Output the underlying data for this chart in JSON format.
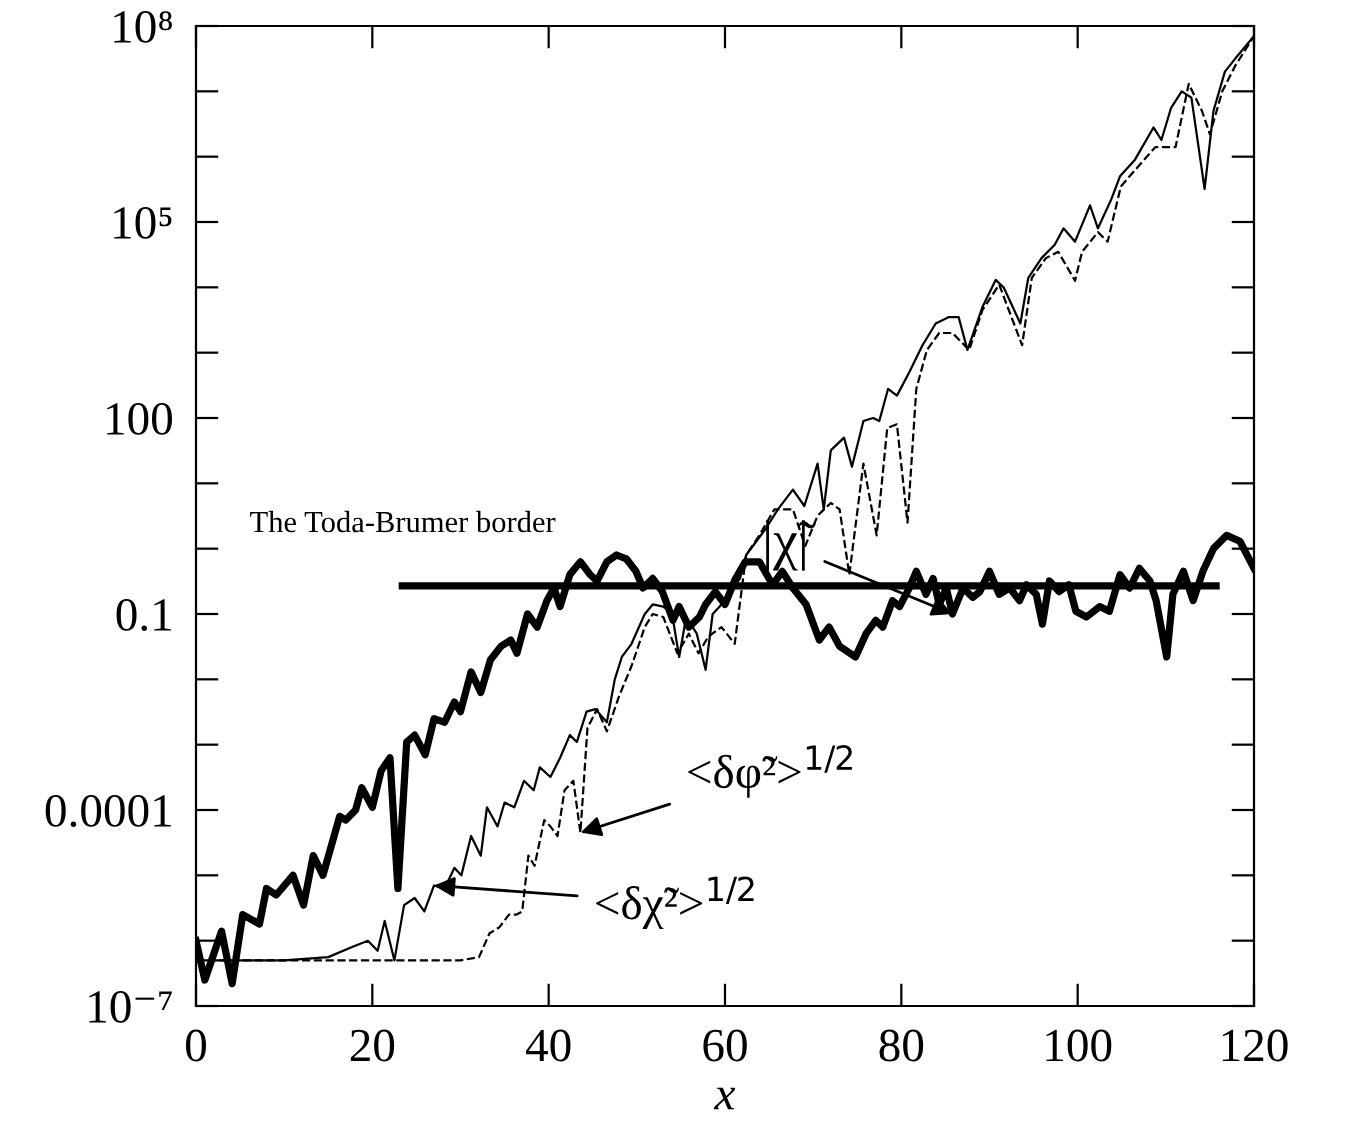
{
  "chart_data": {
    "type": "line",
    "xlabel": "x",
    "log": "y",
    "xlim": [
      0,
      120
    ],
    "xticks": [
      0,
      20,
      40,
      60,
      80,
      100,
      120
    ],
    "ylim": [
      1e-07,
      100000000.0
    ],
    "yticks": [
      {
        "value": 1e-07,
        "label": "10⁻⁷"
      },
      {
        "value": 1e-06,
        "label": null
      },
      {
        "value": 1e-05,
        "label": null
      },
      {
        "value": 0.0001,
        "label": "0.0001"
      },
      {
        "value": 0.001,
        "label": null
      },
      {
        "value": 0.01,
        "label": null
      },
      {
        "value": 0.1,
        "label": "0.1"
      },
      {
        "value": 1,
        "label": null
      },
      {
        "value": 10,
        "label": null
      },
      {
        "value": 100,
        "label": "100"
      },
      {
        "value": 1000,
        "label": null
      },
      {
        "value": 10000,
        "label": null
      },
      {
        "value": 100000,
        "label": "10⁵"
      },
      {
        "value": 1000000,
        "label": null
      },
      {
        "value": 10000000,
        "label": null
      },
      {
        "value": 100000000,
        "label": "10⁸"
      }
    ],
    "grid": false,
    "legend": false,
    "series": [
      {
        "color": "#000000",
        "line_style": "solid",
        "x": [
          0,
          1,
          2.9,
          4.1,
          5.3,
          7.2,
          8,
          9.1,
          11,
          12.2,
          13.3,
          14.4,
          16.3,
          17,
          18.1,
          18.8,
          20,
          21,
          22,
          22.9,
          23.9,
          24.8,
          26,
          27,
          28.2,
          29.3,
          30,
          31.2,
          32.3,
          33.4,
          34.6,
          35.7,
          36.4,
          37.6,
          38.7,
          39.8,
          40.6,
          41.3,
          42.4,
          43.6,
          44.7,
          45.5,
          46.6,
          47.7,
          48.8,
          49.9,
          50.7,
          51.8,
          52.9,
          54.1,
          54.8,
          55.9,
          57.1,
          57.8,
          58.9,
          60,
          61.2,
          62.3,
          63.9,
          65.4,
          66.5,
          67.7,
          69.2,
          70.7,
          71.8,
          73,
          74.8,
          76,
          77.1,
          77.9,
          79,
          79.8,
          80.9,
          81.7,
          82.8,
          83.6,
          84.3,
          85.1,
          85.8,
          87,
          88.1,
          88.9,
          90,
          91.1,
          92.3,
          93.4,
          94.2,
          95.3,
          96,
          96.8,
          97.9,
          99,
          99.8,
          101,
          102.5,
          103.6,
          104.8,
          105.9,
          107,
          108.2,
          108.9,
          110.1,
          110.8,
          112,
          113.1,
          114.2,
          115.4,
          116.9,
          118.4,
          120
        ],
        "values": [
          1e-06,
          2.5e-07,
          1.4e-06,
          2.2e-07,
          2.5e-06,
          1.8e-06,
          6.3e-06,
          5e-06,
          1e-05,
          3.5e-06,
          2e-05,
          1e-05,
          8e-05,
          7e-05,
          0.0001,
          0.00022,
          0.00011,
          0.0004,
          0.00063,
          6.3e-06,
          0.0011,
          0.0014,
          0.0007,
          0.0025,
          0.0022,
          0.0045,
          0.0032,
          0.013,
          0.0063,
          0.02,
          0.032,
          0.04,
          0.025,
          0.1,
          0.063,
          0.16,
          0.25,
          0.13,
          0.4,
          0.63,
          0.4,
          0.32,
          0.63,
          0.8,
          0.7,
          0.45,
          0.25,
          0.35,
          0.22,
          0.08,
          0.13,
          0.063,
          0.09,
          0.14,
          0.22,
          0.14,
          0.35,
          0.63,
          0.63,
          0.28,
          0.45,
          0.25,
          0.14,
          0.04,
          0.063,
          0.032,
          0.022,
          0.05,
          0.08,
          0.063,
          0.16,
          0.13,
          0.25,
          0.45,
          0.2,
          0.35,
          0.14,
          0.25,
          0.1,
          0.25,
          0.18,
          0.22,
          0.45,
          0.2,
          0.25,
          0.16,
          0.28,
          0.2,
          0.07,
          0.32,
          0.22,
          0.28,
          0.11,
          0.09,
          0.13,
          0.11,
          0.4,
          0.25,
          0.5,
          0.32,
          0.16,
          0.022,
          0.2,
          0.45,
          0.16,
          0.45,
          1,
          1.6,
          1.3,
          0.5
        ]
      },
      {
        "color": "#000000",
        "line_style": "solid",
        "x": [
          0,
          5,
          10,
          15,
          17.7,
          19.5,
          20.6,
          21.4,
          22.5,
          23.6,
          24.8,
          25.9,
          27,
          28.2,
          29.3,
          30.1,
          31.2,
          32.3,
          33,
          34.2,
          35,
          36.1,
          37.2,
          38.3,
          39,
          40.2,
          41.3,
          42.4,
          43.2,
          44.3,
          45.3,
          46.6,
          47.5,
          48.3,
          49.4,
          50.9,
          51.8,
          53,
          54,
          54.8,
          55.6,
          56.8,
          57.8,
          58.6,
          59.4,
          60.5,
          61.7,
          62.4,
          64.6,
          66,
          67.7,
          69,
          70.5,
          71.2,
          72,
          73.5,
          74.4,
          75.7,
          76.8,
          77.5,
          78.5,
          79.5,
          80.9,
          82.4,
          83.9,
          85.4,
          86.5,
          87.5,
          89.2,
          90.7,
          91.6,
          93.5,
          94.4,
          95.9,
          97.4,
          98.4,
          99.7,
          101.4,
          102.3,
          103.8,
          104.8,
          106.5,
          108.6,
          109.5,
          110.6,
          111.8,
          112.9,
          114.4,
          115.4,
          116.7,
          117.9,
          120
        ],
        "values": [
          5e-07,
          5e-07,
          5e-07,
          5.6e-07,
          8e-07,
          1e-06,
          7e-07,
          2e-06,
          5e-07,
          3.5e-06,
          4.5e-06,
          2.8e-06,
          7e-06,
          6.3e-06,
          1.3e-05,
          1e-05,
          4e-05,
          2e-05,
          0.00011,
          5.6e-05,
          0.00013,
          0.00011,
          0.00028,
          0.0002,
          0.00045,
          0.00032,
          0.00063,
          0.0014,
          0.0011,
          0.0032,
          0.0035,
          0.0022,
          0.01,
          0.022,
          0.035,
          0.1,
          0.14,
          0.13,
          0.1,
          0.022,
          0.09,
          0.05,
          0.014,
          0.1,
          0.13,
          0.22,
          0.35,
          0.8,
          2,
          4,
          8,
          4.5,
          20,
          4,
          32,
          50,
          18,
          90,
          100,
          90,
          280,
          220,
          500,
          1300,
          2800,
          3500,
          3500,
          1100,
          5000,
          13000,
          10000,
          2800,
          14000,
          28000,
          45000,
          80000,
          50000,
          180000,
          80000,
          220000,
          500000,
          900000,
          2800000,
          1800000,
          5600000,
          10000000,
          8000000,
          320000,
          5000000,
          20000000,
          32000000,
          70000000
        ]
      },
      {
        "color": "#000000",
        "line_style": "dashed",
        "x": [
          0,
          10,
          20,
          30,
          32.1,
          33.3,
          34.4,
          35.5,
          36.3,
          37,
          37.7,
          38.4,
          39.5,
          40.2,
          41,
          41.8,
          42.8,
          43.6,
          44.4,
          45.5,
          46.6,
          48,
          49.4,
          50.9,
          51.8,
          53,
          54.6,
          55.9,
          57,
          58.1,
          59.6,
          61.1,
          62.4,
          63.9,
          65.6,
          67.7,
          69.1,
          70.5,
          72,
          73,
          74.1,
          75.7,
          77.2,
          78.4,
          79.5,
          80.7,
          81.7,
          82.9,
          84.3,
          85.8,
          87.7,
          89.2,
          91.1,
          93.7,
          94.8,
          96.4,
          97.8,
          99.7,
          100.5,
          102.3,
          103.4,
          104.9,
          106.4,
          108.8,
          111.1,
          112.6,
          114.1,
          115,
          116.4,
          117.9,
          120
        ],
        "values": [
          5e-07,
          5e-07,
          5e-07,
          5e-07,
          5.6e-07,
          1.3e-06,
          1.6e-06,
          2.5e-06,
          2.5e-06,
          2.8e-06,
          2e-05,
          1.4e-05,
          7e-05,
          5.6e-05,
          4e-05,
          0.0002,
          0.00028,
          4.5e-05,
          0.0018,
          0.0035,
          0.0016,
          0.0056,
          0.016,
          0.063,
          0.1,
          0.09,
          0.025,
          0.05,
          0.025,
          0.045,
          0.063,
          0.035,
          0.8,
          1.6,
          4,
          4,
          1.1,
          3.2,
          5,
          4,
          0.4,
          20,
          1.6,
          70,
          80,
          2.5,
          280,
          1100,
          2000,
          2000,
          1100,
          4500,
          11000,
          1300,
          14000,
          28000,
          35000,
          12600,
          35000,
          70000,
          50000,
          350000,
          600000,
          1400000,
          1400000,
          13000000,
          5000000,
          2200000,
          10000000,
          25000000,
          70000000
        ]
      },
      {
        "color": "#000000",
        "line_style": "solid",
        "x": [
          23.4,
          115.7
        ],
        "values": [
          0.27,
          0.27
        ]
      }
    ],
    "annotations": [
      {
        "text": "The Toda-Brumer border",
        "x": 23.4,
        "y": 0.27
      },
      {
        "text": "|χ̃|",
        "x": 85.8,
        "y": 0.1
      },
      {
        "text": "<δφ̃²>$^{1/2}$",
        "x": 43.6,
        "y": 4.5e-05
      },
      "<δχ̃²>$^{1/2}$"
    ]
  }
}
